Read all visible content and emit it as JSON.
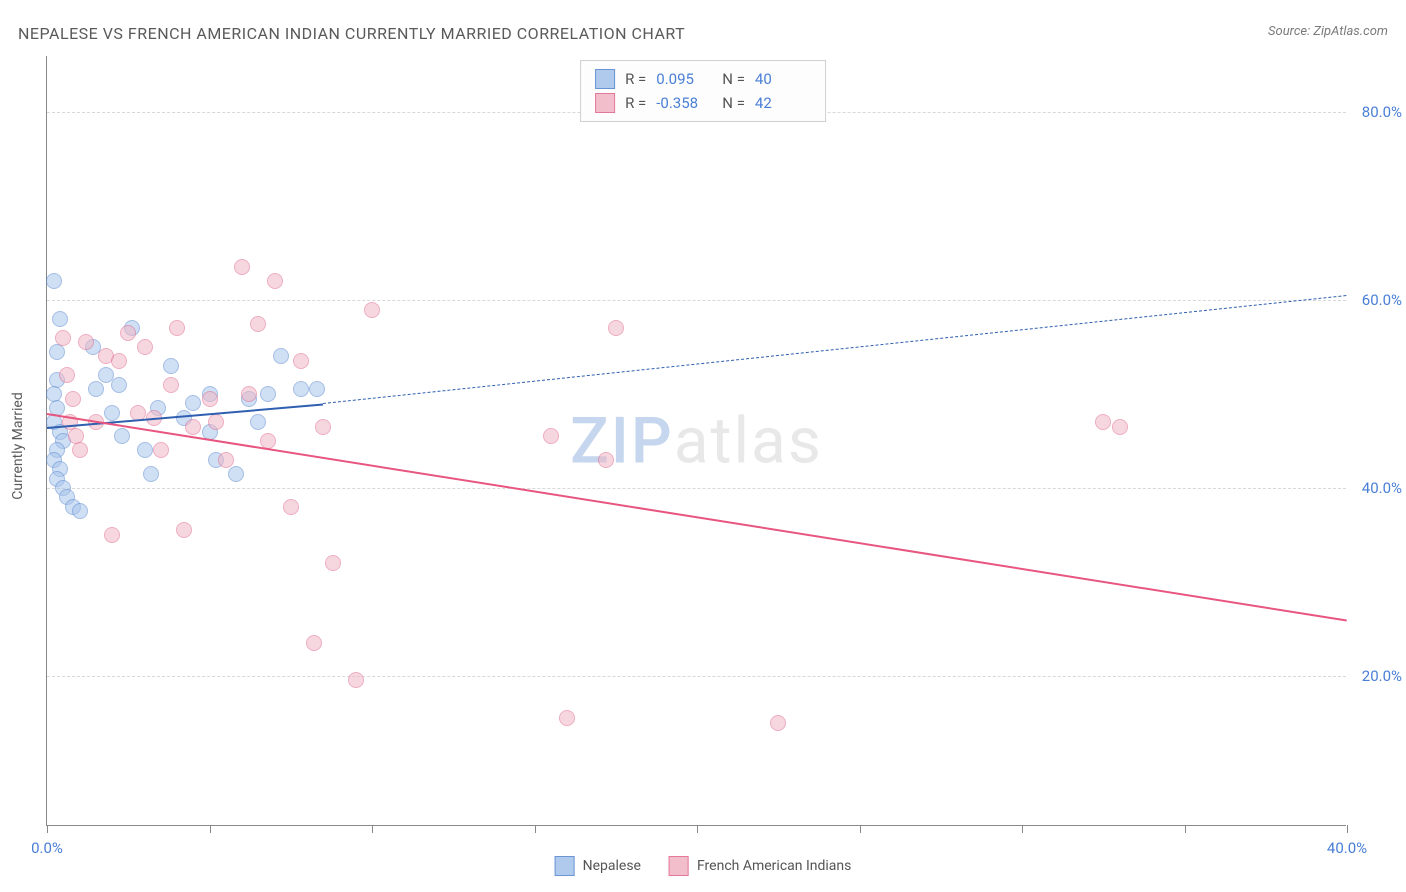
{
  "title": "NEPALESE VS FRENCH AMERICAN INDIAN CURRENTLY MARRIED CORRELATION CHART",
  "source": "Source: ZipAtlas.com",
  "yaxis_title": "Currently Married",
  "watermark": {
    "part1": "ZIP",
    "part2": "atlas"
  },
  "chart": {
    "type": "scatter",
    "background_color": "#ffffff",
    "grid_color": "#d8d8d8",
    "axis_color": "#888888",
    "text_color": "#5a5a5a",
    "tick_color": "#4a7fd6",
    "xlim": [
      0,
      40
    ],
    "ylim": [
      4,
      86
    ],
    "yticks": [
      20,
      40,
      60,
      80
    ],
    "ytick_labels": [
      "20.0%",
      "40.0%",
      "60.0%",
      "80.0%"
    ],
    "xticks": [
      0,
      5,
      10,
      15,
      20,
      25,
      30,
      35,
      40
    ],
    "xtick_labels": {
      "0": "0.0%",
      "40": "40.0%"
    },
    "series": [
      {
        "name": "Nepalese",
        "fill": "#a8c5ec",
        "stroke": "#5b8ad0",
        "fill_opacity": 0.55,
        "marker_radius": 8,
        "R": "0.095",
        "N": "40",
        "trend": {
          "color": "#2f5fb0",
          "solid_width": 2.5,
          "dash_width": 1.5,
          "solid": [
            [
              0,
              46.5
            ],
            [
              8.5,
              49.0
            ]
          ],
          "dash": [
            [
              8.5,
              49.0
            ],
            [
              40,
              60.5
            ]
          ]
        },
        "points": [
          [
            0.2,
            62.0
          ],
          [
            0.4,
            58.0
          ],
          [
            0.3,
            54.5
          ],
          [
            0.3,
            51.5
          ],
          [
            0.2,
            50.0
          ],
          [
            0.3,
            48.5
          ],
          [
            0.2,
            47.0
          ],
          [
            0.4,
            46.0
          ],
          [
            0.5,
            45.0
          ],
          [
            0.3,
            44.0
          ],
          [
            0.2,
            43.0
          ],
          [
            0.4,
            42.0
          ],
          [
            0.3,
            41.0
          ],
          [
            0.5,
            40.0
          ],
          [
            0.6,
            39.0
          ],
          [
            0.8,
            38.0
          ],
          [
            1.0,
            37.5
          ],
          [
            1.5,
            50.5
          ],
          [
            1.4,
            55.0
          ],
          [
            1.8,
            52.0
          ],
          [
            2.0,
            48.0
          ],
          [
            2.3,
            45.5
          ],
          [
            2.2,
            51.0
          ],
          [
            2.6,
            57.0
          ],
          [
            3.0,
            44.0
          ],
          [
            3.2,
            41.5
          ],
          [
            3.4,
            48.5
          ],
          [
            3.8,
            53.0
          ],
          [
            4.2,
            47.5
          ],
          [
            4.5,
            49.0
          ],
          [
            5.0,
            46.0
          ],
          [
            5.0,
            50.0
          ],
          [
            5.2,
            43.0
          ],
          [
            5.8,
            41.5
          ],
          [
            6.5,
            47.0
          ],
          [
            6.2,
            49.5
          ],
          [
            6.8,
            50.0
          ],
          [
            7.2,
            54.0
          ],
          [
            7.8,
            50.5
          ],
          [
            8.3,
            50.5
          ]
        ]
      },
      {
        "name": "French American Indians",
        "fill": "#f2b8c6",
        "stroke": "#e06a8f",
        "fill_opacity": 0.55,
        "marker_radius": 8,
        "R": "-0.358",
        "N": "42",
        "trend": {
          "color": "#e8557f",
          "solid_width": 2.5,
          "solid": [
            [
              0,
              48.0
            ],
            [
              40,
              26.0
            ]
          ]
        },
        "points": [
          [
            0.5,
            56.0
          ],
          [
            0.6,
            52.0
          ],
          [
            0.8,
            49.5
          ],
          [
            0.7,
            47.0
          ],
          [
            0.9,
            45.5
          ],
          [
            1.0,
            44.0
          ],
          [
            1.2,
            55.5
          ],
          [
            1.5,
            47.0
          ],
          [
            1.8,
            54.0
          ],
          [
            2.0,
            35.0
          ],
          [
            2.2,
            53.5
          ],
          [
            2.5,
            56.5
          ],
          [
            2.8,
            48.0
          ],
          [
            3.0,
            55.0
          ],
          [
            3.3,
            47.5
          ],
          [
            3.5,
            44.0
          ],
          [
            3.8,
            51.0
          ],
          [
            4.0,
            57.0
          ],
          [
            4.2,
            35.5
          ],
          [
            4.5,
            46.5
          ],
          [
            5.0,
            49.5
          ],
          [
            5.2,
            47.0
          ],
          [
            5.5,
            43.0
          ],
          [
            6.0,
            63.5
          ],
          [
            6.2,
            50.0
          ],
          [
            6.5,
            57.5
          ],
          [
            6.8,
            45.0
          ],
          [
            7.0,
            62.0
          ],
          [
            7.5,
            38.0
          ],
          [
            7.8,
            53.5
          ],
          [
            8.2,
            23.5
          ],
          [
            8.5,
            46.5
          ],
          [
            8.8,
            32.0
          ],
          [
            9.5,
            19.5
          ],
          [
            10.0,
            59.0
          ],
          [
            15.5,
            45.5
          ],
          [
            16.0,
            15.5
          ],
          [
            17.5,
            57.0
          ],
          [
            17.2,
            43.0
          ],
          [
            22.5,
            15.0
          ],
          [
            32.5,
            47.0
          ],
          [
            33.0,
            46.5
          ]
        ]
      }
    ]
  },
  "legend_top": {
    "r_label": "R =",
    "n_label": "N ="
  },
  "legend_bottom": [
    {
      "label": "Nepalese",
      "fill": "#a8c5ec",
      "stroke": "#5b8ad0"
    },
    {
      "label": "French American Indians",
      "fill": "#f2b8c6",
      "stroke": "#e06a8f"
    }
  ]
}
